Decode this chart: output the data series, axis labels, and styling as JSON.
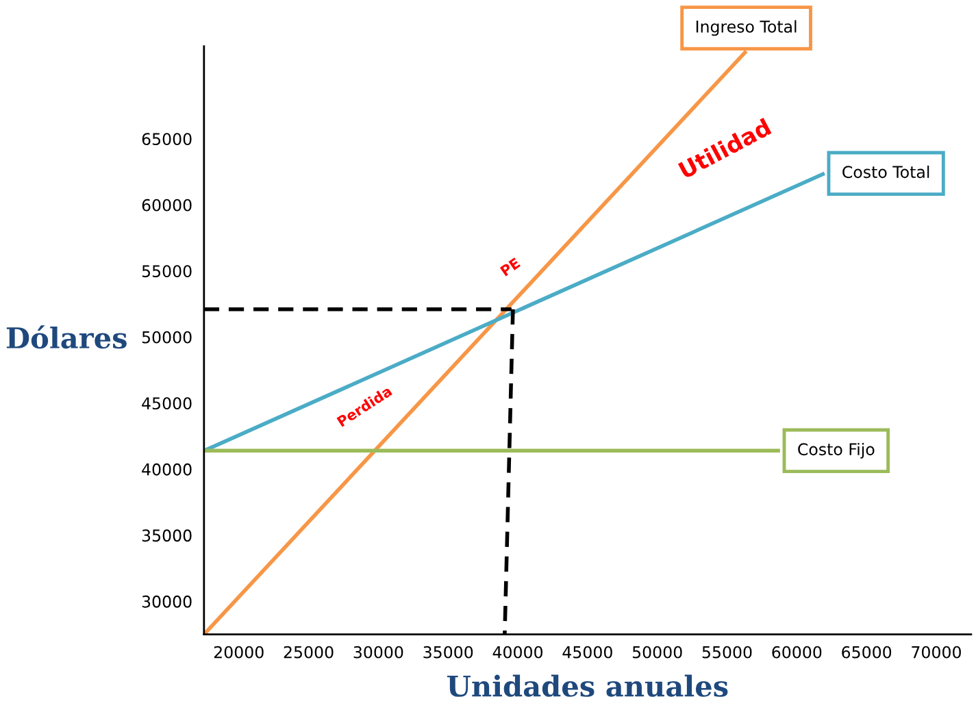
{
  "chart_data": {
    "type": "line",
    "xlabel": "Unidades anuales",
    "ylabel": "Dólares",
    "xlim": [
      17500,
      72500
    ],
    "ylim": [
      27500,
      72000
    ],
    "xticks": [
      20000,
      25000,
      30000,
      35000,
      40000,
      45000,
      50000,
      55000,
      60000,
      65000,
      70000
    ],
    "yticks": [
      30000,
      35000,
      40000,
      45000,
      50000,
      55000,
      60000,
      65000
    ],
    "grid": false,
    "legend": false,
    "marker": "none",
    "line_style": "solid",
    "series": [
      {
        "name": "Ingreso Total",
        "color": "#f79646",
        "x": [
          17500,
          56380
        ],
        "values": [
          27500,
          71640
        ]
      },
      {
        "name": "Costo Total",
        "color": "#4bacc6",
        "x": [
          17500,
          61990
        ],
        "values": [
          41390,
          62380
        ]
      },
      {
        "name": "Costo Fijo",
        "color": "#9bbb59",
        "x": [
          17500,
          58800
        ],
        "values": [
          41400,
          41400
        ]
      },
      {
        "color": "#000000",
        "line_style": "dashed",
        "x": [
          17500,
          39550
        ],
        "values": [
          52100,
          52100
        ]
      },
      {
        "color": "#000000",
        "line_style": "dashed",
        "x": [
          39650,
          39060
        ],
        "values": [
          52100,
          27500
        ]
      }
    ],
    "annotations": [
      "Utilidad",
      "PE",
      "Perdida"
    ]
  }
}
